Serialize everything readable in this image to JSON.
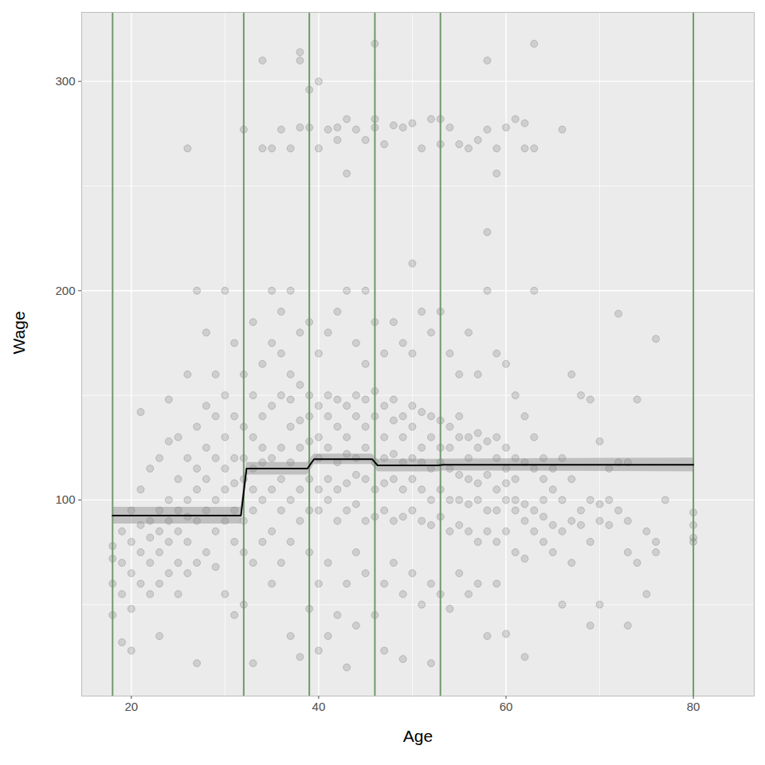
{
  "chart_data": {
    "type": "scatter",
    "xlabel": "Age",
    "ylabel": "Wage",
    "xlim": [
      14.7,
      86.5
    ],
    "ylim": [
      6.3,
      333
    ],
    "xticks": [
      20,
      40,
      60,
      80
    ],
    "yticks": [
      100,
      200,
      300
    ],
    "grid": true,
    "color": "#000000",
    "x": [
      18,
      18,
      18,
      18,
      19,
      19,
      19,
      19,
      20,
      20,
      20,
      20,
      20,
      21,
      21,
      21,
      21,
      21,
      22,
      22,
      22,
      22,
      22,
      23,
      23,
      23,
      23,
      23,
      23,
      24,
      24,
      24,
      24,
      24,
      24,
      25,
      25,
      25,
      25,
      25,
      25,
      26,
      26,
      26,
      26,
      26,
      26,
      26,
      27,
      27,
      27,
      27,
      27,
      27,
      27,
      28,
      28,
      28,
      28,
      28,
      28,
      29,
      29,
      29,
      29,
      29,
      29,
      30,
      30,
      30,
      30,
      30,
      30,
      30,
      31,
      31,
      31,
      31,
      31,
      31,
      31,
      32,
      32,
      32,
      32,
      32,
      32,
      32,
      32,
      33,
      33,
      33,
      33,
      33,
      33,
      33,
      33,
      34,
      34,
      34,
      34,
      34,
      34,
      34,
      34,
      35,
      35,
      35,
      35,
      35,
      35,
      35,
      35,
      36,
      36,
      36,
      36,
      36,
      36,
      36,
      36,
      37,
      37,
      37,
      37,
      37,
      37,
      37,
      37,
      37,
      38,
      38,
      38,
      38,
      38,
      38,
      38,
      38,
      38,
      38,
      39,
      39,
      39,
      39,
      39,
      39,
      39,
      39,
      39,
      39,
      40,
      40,
      40,
      40,
      40,
      40,
      40,
      40,
      40,
      40,
      41,
      41,
      41,
      41,
      41,
      41,
      41,
      41,
      41,
      42,
      42,
      42,
      42,
      42,
      42,
      42,
      42,
      42,
      43,
      43,
      43,
      43,
      43,
      43,
      43,
      43,
      43,
      43,
      44,
      44,
      44,
      44,
      44,
      44,
      44,
      44,
      44,
      45,
      45,
      45,
      45,
      45,
      45,
      45,
      45,
      45,
      46,
      46,
      46,
      46,
      46,
      46,
      46,
      46,
      46,
      46,
      47,
      47,
      47,
      47,
      47,
      47,
      47,
      47,
      47,
      48,
      48,
      48,
      48,
      48,
      48,
      48,
      48,
      49,
      49,
      49,
      49,
      49,
      49,
      49,
      49,
      49,
      50,
      50,
      50,
      50,
      50,
      50,
      50,
      50,
      50,
      51,
      51,
      51,
      51,
      51,
      51,
      51,
      51,
      52,
      52,
      52,
      52,
      52,
      52,
      52,
      52,
      52,
      53,
      53,
      53,
      53,
      53,
      53,
      53,
      53,
      53,
      54,
      54,
      54,
      54,
      54,
      54,
      54,
      54,
      55,
      55,
      55,
      55,
      55,
      55,
      55,
      55,
      56,
      56,
      56,
      56,
      56,
      56,
      56,
      56,
      57,
      57,
      57,
      57,
      57,
      57,
      57,
      57,
      58,
      58,
      58,
      58,
      58,
      58,
      58,
      58,
      58,
      59,
      59,
      59,
      59,
      59,
      59,
      59,
      59,
      59,
      60,
      60,
      60,
      60,
      60,
      60,
      60,
      60,
      61,
      61,
      61,
      61,
      61,
      61,
      61,
      62,
      62,
      62,
      62,
      62,
      62,
      62,
      62,
      63,
      63,
      63,
      63,
      63,
      63,
      63,
      64,
      64,
      64,
      64,
      64,
      65,
      65,
      65,
      65,
      66,
      66,
      66,
      66,
      66,
      67,
      67,
      67,
      67,
      68,
      68,
      68,
      69,
      69,
      69,
      69,
      70,
      70,
      70,
      70,
      71,
      71,
      71,
      72,
      72,
      72,
      73,
      73,
      73,
      73,
      74,
      74,
      75,
      75,
      76,
      76,
      76,
      77,
      80,
      80,
      80,
      80
    ],
    "values": [
      72,
      60,
      45,
      78,
      70,
      55,
      85,
      32,
      65,
      80,
      95,
      48,
      28,
      75,
      60,
      105,
      142,
      88,
      70,
      90,
      115,
      55,
      82,
      95,
      75,
      120,
      60,
      35,
      85,
      100,
      80,
      128,
      65,
      148,
      90,
      110,
      85,
      70,
      130,
      95,
      55,
      100,
      120,
      80,
      160,
      268,
      65,
      92,
      115,
      90,
      200,
      70,
      135,
      105,
      22,
      125,
      95,
      145,
      75,
      110,
      180,
      120,
      100,
      160,
      85,
      140,
      68,
      130,
      105,
      200,
      90,
      115,
      150,
      55,
      120,
      95,
      175,
      80,
      140,
      108,
      45,
      135,
      110,
      277,
      90,
      160,
      120,
      50,
      75,
      130,
      115,
      185,
      95,
      150,
      70,
      105,
      22,
      140,
      118,
      310,
      268,
      100,
      165,
      80,
      125,
      145,
      120,
      200,
      268,
      105,
      175,
      85,
      60,
      150,
      125,
      190,
      95,
      277,
      110,
      170,
      70,
      148,
      118,
      200,
      268,
      100,
      160,
      135,
      80,
      35,
      155,
      125,
      314,
      310,
      278,
      105,
      180,
      90,
      138,
      25,
      150,
      128,
      296,
      278,
      110,
      185,
      95,
      140,
      75,
      48,
      145,
      120,
      300,
      268,
      105,
      170,
      95,
      130,
      60,
      28,
      150,
      125,
      277,
      110,
      180,
      100,
      140,
      70,
      35,
      148,
      118,
      278,
      272,
      105,
      190,
      90,
      135,
      45,
      145,
      122,
      282,
      256,
      108,
      200,
      95,
      130,
      60,
      20,
      150,
      120,
      277,
      112,
      175,
      98,
      140,
      75,
      40,
      148,
      125,
      200,
      272,
      110,
      165,
      90,
      135,
      65,
      152,
      118,
      318,
      282,
      278,
      105,
      185,
      92,
      140,
      45,
      145,
      120,
      270,
      108,
      170,
      95,
      130,
      60,
      28,
      148,
      122,
      279,
      110,
      185,
      90,
      138,
      70,
      140,
      118,
      278,
      105,
      175,
      92,
      130,
      55,
      24,
      145,
      120,
      213,
      280,
      110,
      170,
      95,
      135,
      65,
      142,
      118,
      268,
      105,
      190,
      90,
      125,
      50,
      140,
      115,
      282,
      100,
      180,
      88,
      130,
      60,
      22,
      138,
      118,
      282,
      270,
      105,
      190,
      92,
      125,
      55,
      135,
      115,
      278,
      100,
      170,
      85,
      125,
      48,
      140,
      112,
      270,
      100,
      160,
      88,
      130,
      65,
      130,
      110,
      268,
      98,
      180,
      85,
      120,
      55,
      132,
      108,
      272,
      100,
      160,
      80,
      125,
      60,
      128,
      112,
      310,
      277,
      228,
      95,
      200,
      85,
      35,
      130,
      105,
      268,
      256,
      95,
      170,
      80,
      120,
      60,
      125,
      108,
      278,
      100,
      165,
      85,
      115,
      36,
      120,
      100,
      282,
      95,
      150,
      75,
      110,
      118,
      98,
      280,
      268,
      90,
      140,
      72,
      25,
      115,
      95,
      318,
      268,
      200,
      85,
      130,
      110,
      92,
      120,
      80,
      100,
      105,
      88,
      115,
      75,
      100,
      85,
      277,
      120,
      50,
      110,
      90,
      160,
      70,
      95,
      88,
      150,
      100,
      80,
      148,
      40,
      98,
      128,
      50,
      90,
      100,
      115,
      88,
      189,
      95,
      118,
      90,
      118,
      40,
      75,
      148,
      70,
      85,
      55,
      177,
      80,
      75,
      100,
      94,
      88,
      82,
      80
    ],
    "fit": {
      "color": "#000000",
      "x": [
        18,
        31.7,
        32.3,
        38.8,
        39.5,
        45.7,
        46.3,
        52.7,
        53.3,
        80
      ],
      "values": [
        92.5,
        92.5,
        115,
        115,
        119.5,
        119.5,
        116.5,
        116.5,
        116.8,
        116.8
      ],
      "lower": [
        88.5,
        88.5,
        112,
        112,
        117,
        117,
        113.5,
        113.5,
        114,
        113.5
      ],
      "upper": [
        96.5,
        96.5,
        118,
        118,
        122,
        122,
        119.5,
        119.5,
        119.6,
        120.1
      ]
    },
    "knots": {
      "color": "#6e9a6a",
      "values": [
        18,
        32,
        39,
        46,
        53,
        80
      ]
    }
  }
}
